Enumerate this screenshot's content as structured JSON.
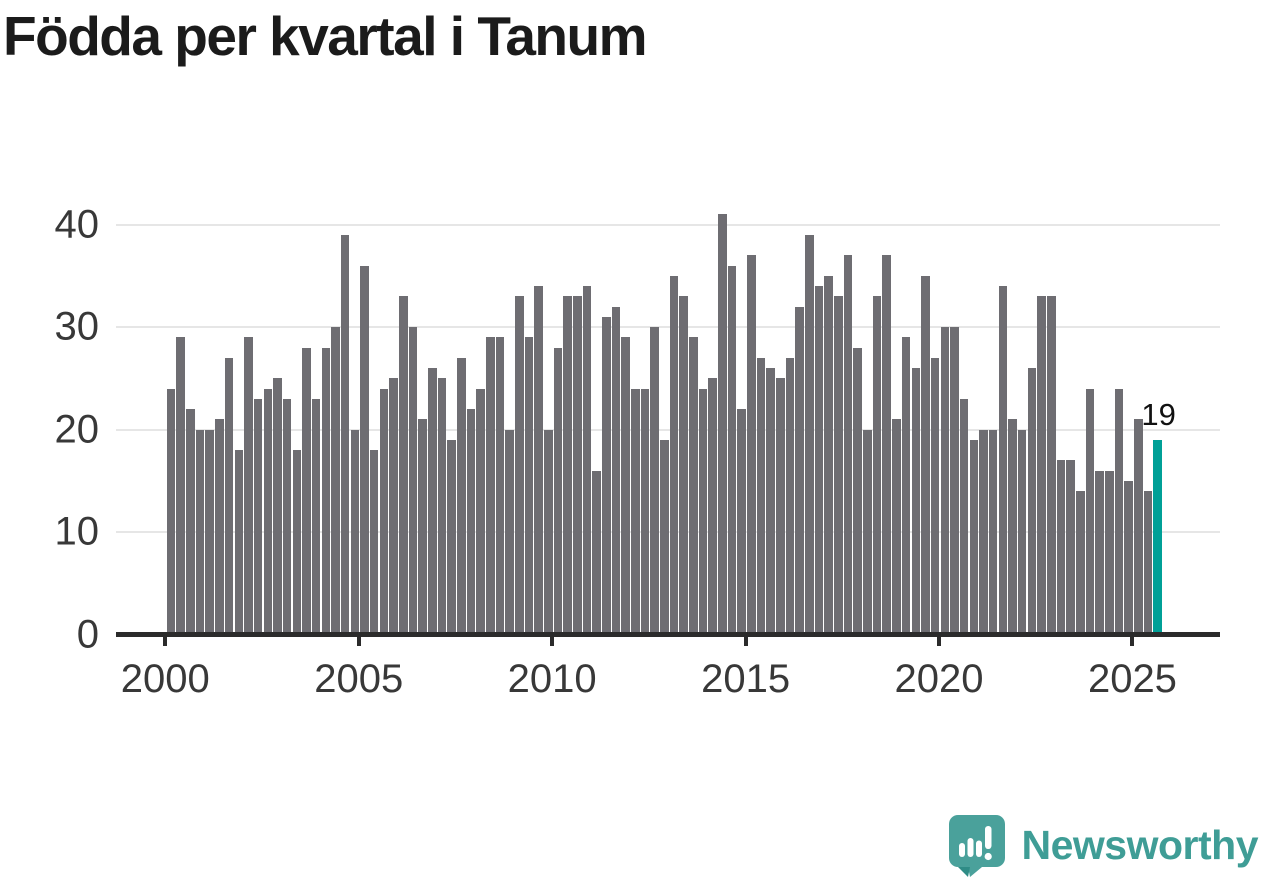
{
  "title": "Födda per kvartal i Tanum",
  "annotation": {
    "last_value": "19"
  },
  "branding": {
    "name": "Newsworthy",
    "icon": "newsworthy-speech-bubble-bar-chart-icon",
    "color": "#3f9d96"
  },
  "colors": {
    "background": "#ffffff",
    "bar": "#6e6d72",
    "highlight": "#00a097",
    "grid": "#e6e6e6",
    "axis": "#2b2b2b",
    "title_text": "#1b1b1b",
    "tick_text": "#383838"
  },
  "chart_data": {
    "type": "bar",
    "title": "Födda per kvartal i Tanum",
    "xlabel": "",
    "ylabel": "",
    "x_start": "2000-Q1",
    "x_end": "2025-Q3",
    "periodicity": "quarterly",
    "values": [
      24,
      29,
      22,
      20,
      20,
      21,
      27,
      18,
      29,
      23,
      24,
      25,
      23,
      18,
      28,
      23,
      28,
      30,
      39,
      20,
      36,
      18,
      24,
      25,
      33,
      30,
      21,
      26,
      25,
      19,
      27,
      22,
      24,
      29,
      29,
      20,
      33,
      29,
      34,
      20,
      28,
      33,
      33,
      34,
      16,
      31,
      32,
      29,
      24,
      24,
      30,
      19,
      35,
      33,
      29,
      24,
      25,
      41,
      36,
      22,
      37,
      27,
      26,
      25,
      27,
      32,
      39,
      34,
      35,
      33,
      37,
      28,
      20,
      33,
      37,
      21,
      29,
      26,
      35,
      27,
      30,
      30,
      23,
      19,
      20,
      20,
      34,
      21,
      20,
      26,
      33,
      33,
      17,
      17,
      14,
      24,
      16,
      16,
      24,
      15,
      21,
      14,
      19
    ],
    "x_tick_labels": [
      "2000",
      "2005",
      "2010",
      "2015",
      "2020",
      "2025"
    ],
    "x_tick_years": [
      2000,
      2005,
      2010,
      2015,
      2020,
      2025
    ],
    "y_tick_labels": [
      "0",
      "10",
      "20",
      "30",
      "40"
    ],
    "y_tick_values": [
      0,
      10,
      20,
      30,
      40
    ],
    "ylim": [
      0,
      43
    ],
    "grid": "horizontal",
    "legend": "none",
    "highlight_index": 102,
    "highlight_label": "19"
  }
}
